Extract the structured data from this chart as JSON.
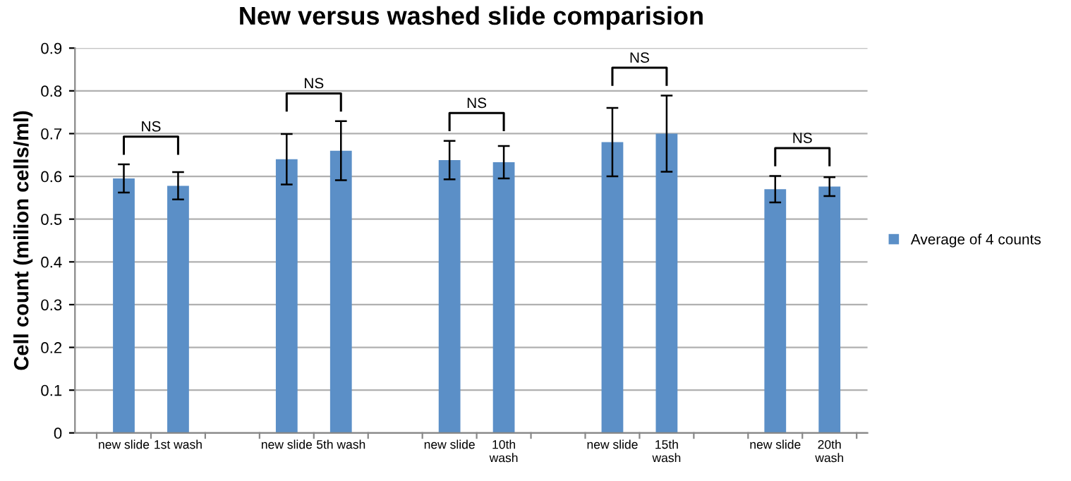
{
  "chart_data": {
    "type": "bar",
    "title": "New versus washed slide comparision",
    "ylabel": "Cell count (milion cells/ml)",
    "categories": [
      "new slide",
      "1st wash",
      null,
      "new slide",
      "5th wash",
      null,
      "new slide",
      "10th\nwash",
      null,
      "new slide",
      "15th\nwash",
      null,
      "new slide",
      "20th\nwash"
    ],
    "series": [
      {
        "name": "Average of 4 counts",
        "color": "#5b8fc7",
        "values": [
          0.595,
          0.578,
          null,
          0.64,
          0.66,
          null,
          0.638,
          0.633,
          null,
          0.68,
          0.7,
          null,
          0.57,
          0.576
        ],
        "errors": [
          0.033,
          0.032,
          null,
          0.059,
          0.069,
          null,
          0.045,
          0.038,
          null,
          0.08,
          0.089,
          null,
          0.031,
          0.022
        ]
      }
    ],
    "annotations": [
      "NS",
      "NS",
      "NS",
      "NS",
      "NS"
    ],
    "ylim": [
      0,
      0.9
    ],
    "yticks": [
      0,
      0.1,
      0.2,
      0.3,
      0.4,
      0.5,
      0.6,
      0.7,
      0.8,
      0.9
    ],
    "grid": "y",
    "legend": "right"
  }
}
